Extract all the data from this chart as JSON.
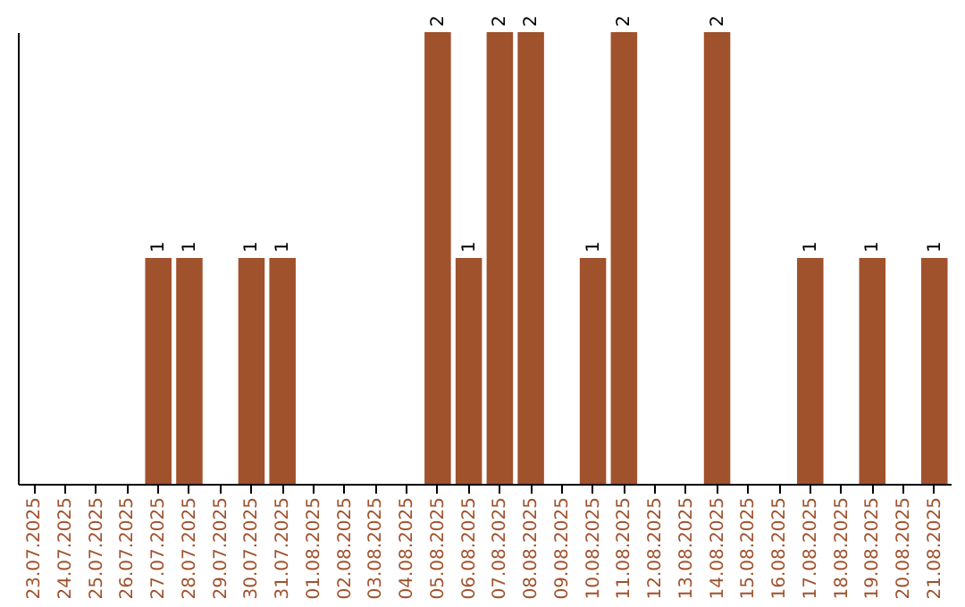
{
  "chart_data": {
    "type": "bar",
    "color": "#a0522d",
    "categories": [
      "23.07.2025",
      "24.07.2025",
      "25.07.2025",
      "26.07.2025",
      "27.07.2025",
      "28.07.2025",
      "29.07.2025",
      "30.07.2025",
      "31.07.2025",
      "01.08.2025",
      "02.08.2025",
      "03.08.2025",
      "04.08.2025",
      "05.08.2025",
      "06.08.2025",
      "07.08.2025",
      "08.08.2025",
      "09.08.2025",
      "10.08.2025",
      "11.08.2025",
      "12.08.2025",
      "13.08.2025",
      "14.08.2025",
      "15.08.2025",
      "16.08.2025",
      "17.08.2025",
      "18.08.2025",
      "19.08.2025",
      "20.08.2025",
      "21.08.2025"
    ],
    "values": [
      0,
      0,
      0,
      0,
      1,
      1,
      0,
      1,
      1,
      0,
      0,
      0,
      0,
      2,
      1,
      2,
      2,
      0,
      1,
      2,
      0,
      0,
      2,
      0,
      0,
      1,
      0,
      1,
      0,
      1
    ],
    "value_labels": [
      null,
      null,
      null,
      null,
      "1",
      "1",
      null,
      "1",
      "1",
      null,
      null,
      null,
      null,
      "2",
      "1",
      "2",
      "2",
      null,
      "1",
      "2",
      null,
      null,
      "2",
      null,
      null,
      "1",
      null,
      "1",
      null,
      "1"
    ],
    "tick_labels": "x",
    "grid": false
  }
}
